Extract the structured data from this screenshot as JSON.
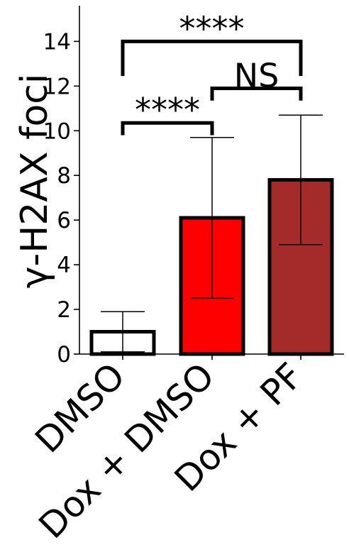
{
  "chart_data": {
    "type": "bar",
    "title": "",
    "xlabel": "",
    "ylabel": "γ-H2AX foci",
    "categories": [
      "DMSO",
      "Dox + DMSO",
      "Dox + PF"
    ],
    "values": [
      1.0,
      6.1,
      7.8
    ],
    "errors": [
      0.9,
      3.6,
      2.9
    ],
    "bar_colors": [
      "#ffffff",
      "#ff0000",
      "#a52a2a"
    ],
    "bar_edge_color": "#000000",
    "ylim": [
      0,
      15.6
    ],
    "yticks": [
      0,
      2,
      4,
      6,
      8,
      10,
      12,
      14
    ],
    "grid": false,
    "significance": [
      {
        "from": 0,
        "to": 1,
        "label": "****",
        "y": 10.35,
        "drop": 0.55
      },
      {
        "from": 1,
        "to": 2,
        "label": "NS",
        "y": 11.9,
        "drop": 0.55
      },
      {
        "from": 0,
        "to": 2,
        "label": "****",
        "y": 14.0,
        "drop": 1.55
      }
    ]
  }
}
